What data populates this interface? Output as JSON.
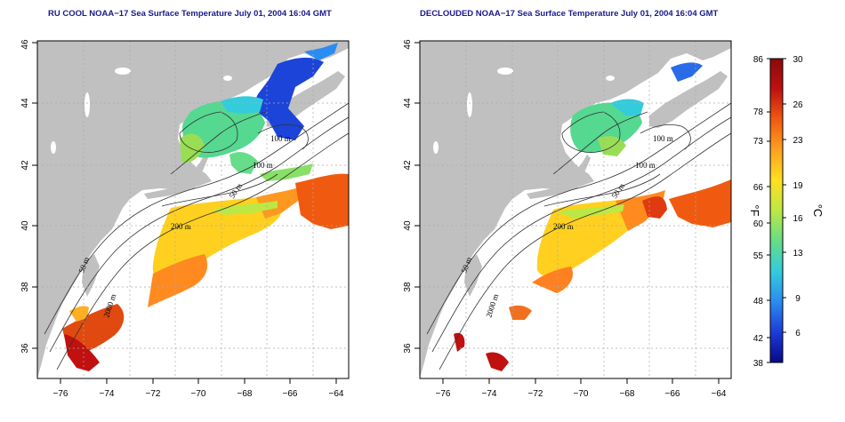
{
  "panels": [
    {
      "title": "RU COOL NOAA−17 Sea Surface Temperature July 01, 2004 16:04 GMT",
      "contour_labels": [
        "100 m",
        "100 m",
        "50 m",
        "200 m",
        "50 m",
        "2000 m"
      ]
    },
    {
      "title": "DECLOUDED NOAA−17 Sea Surface Temperature July 01, 2004 16:04 GMT",
      "contour_labels": [
        "100 m",
        "100 m",
        "50 m",
        "200 m",
        "50 m",
        "2000 m"
      ]
    }
  ],
  "axes": {
    "x_ticks": [
      "−76",
      "−74",
      "−72",
      "−70",
      "−68",
      "−66",
      "−64"
    ],
    "y_ticks": [
      "36",
      "38",
      "40",
      "42",
      "44",
      "46"
    ]
  },
  "colorbar": {
    "fahrenheit_ticks": [
      "86",
      "78",
      "73",
      "66",
      "60",
      "55",
      "48",
      "42",
      "38"
    ],
    "celsius_ticks": [
      "30",
      "26",
      "23",
      "19",
      "16",
      "13",
      "9",
      "6"
    ],
    "f_unit": "°F",
    "c_unit": "°C",
    "colors": [
      "#08088a",
      "#1c3cd8",
      "#2a8cf0",
      "#33ccdd",
      "#66dd88",
      "#bbe844",
      "#ffe020",
      "#ffa020",
      "#f05a10",
      "#c01010",
      "#8a0a0a"
    ]
  },
  "colors": {
    "land": "#c0c0c0",
    "ocean": "#ffffff",
    "title": "#1a1a8c"
  }
}
